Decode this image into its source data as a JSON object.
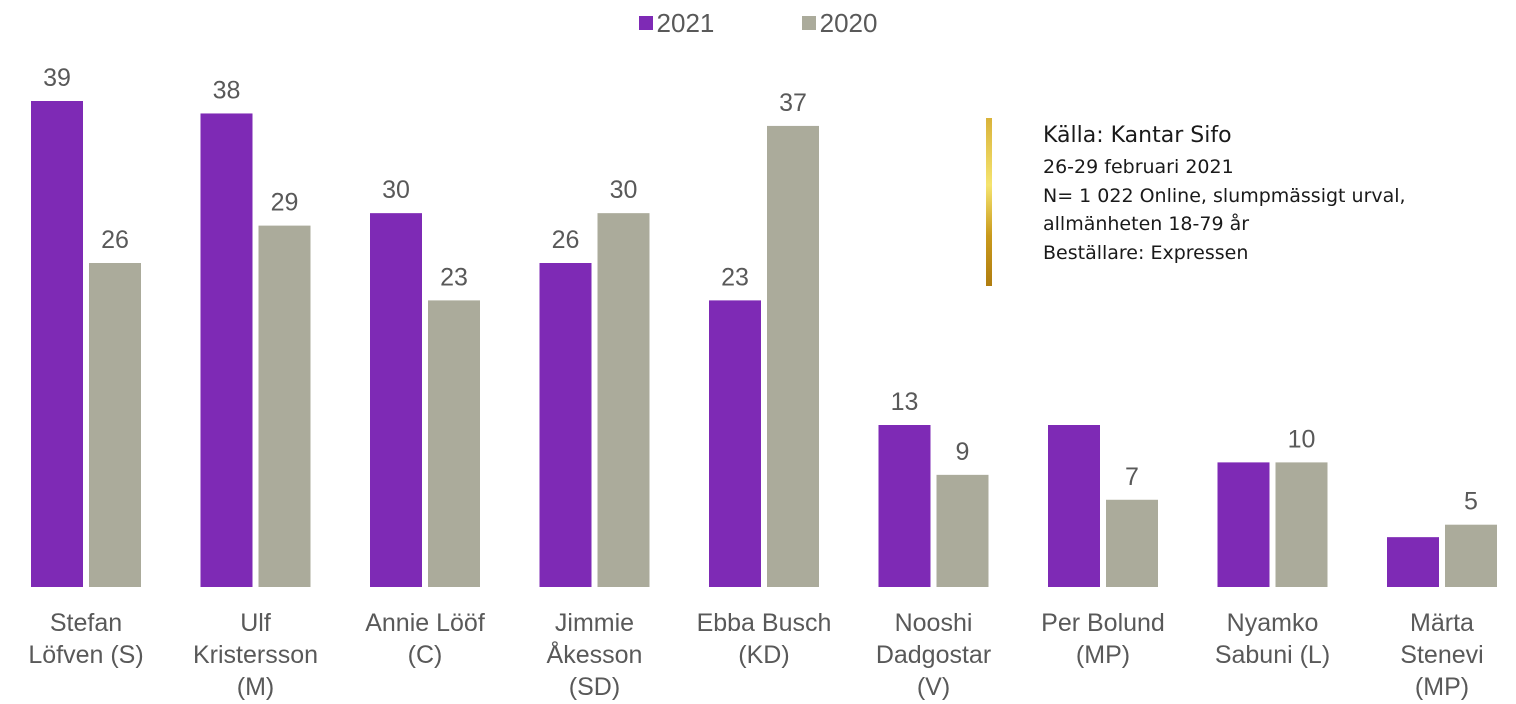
{
  "chart_data": {
    "type": "bar",
    "categories": [
      [
        "Stefan",
        "Löfven (S)"
      ],
      [
        "Ulf",
        "Kristersson",
        "(M)"
      ],
      [
        "Annie Lööf",
        "(C)"
      ],
      [
        "Jimmie",
        "Åkesson",
        "(SD)"
      ],
      [
        "Ebba Busch",
        "(KD)"
      ],
      [
        "Nooshi",
        "Dadgostar",
        "(V)"
      ],
      [
        "Per Bolund",
        "(MP)"
      ],
      [
        "Nyamko",
        "Sabuni (L)"
      ],
      [
        "Märta",
        "Stenevi",
        "(MP)"
      ]
    ],
    "series": [
      {
        "name": "2021",
        "color": "#7e2ab5",
        "values": [
          39,
          38,
          30,
          26,
          23,
          13,
          13,
          10,
          4
        ],
        "labels": [
          "39",
          "38",
          "30",
          "26",
          "23",
          "13",
          "",
          "",
          ""
        ]
      },
      {
        "name": "2020",
        "color": "#abab9b",
        "values": [
          26,
          29,
          23,
          30,
          37,
          9,
          7,
          10,
          5
        ],
        "labels": [
          "26",
          "29",
          "23",
          "30",
          "37",
          "9",
          "7",
          "10",
          "5"
        ]
      }
    ],
    "ylim": [
      0,
      39
    ],
    "grid": false,
    "legend_position": "top-center",
    "title": "",
    "xlabel": "",
    "ylabel": ""
  },
  "source_box": {
    "title": "Källa: Kantar Sifo",
    "lines": [
      "26-29 februari 2021",
      "N= 1 022 Online, slumpmässigt urval,",
      "allmänheten 18-79 år",
      "Beställare: Expressen"
    ]
  }
}
